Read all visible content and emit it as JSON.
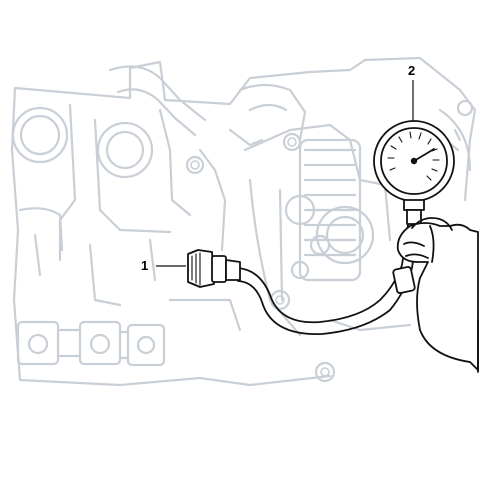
{
  "callouts": [
    {
      "id": "1",
      "label": "1"
    },
    {
      "id": "2",
      "label": "2"
    }
  ],
  "colors": {
    "background": "#ffffff",
    "engine_outline": "#c9cfd6",
    "tool_outline": "#111111"
  }
}
